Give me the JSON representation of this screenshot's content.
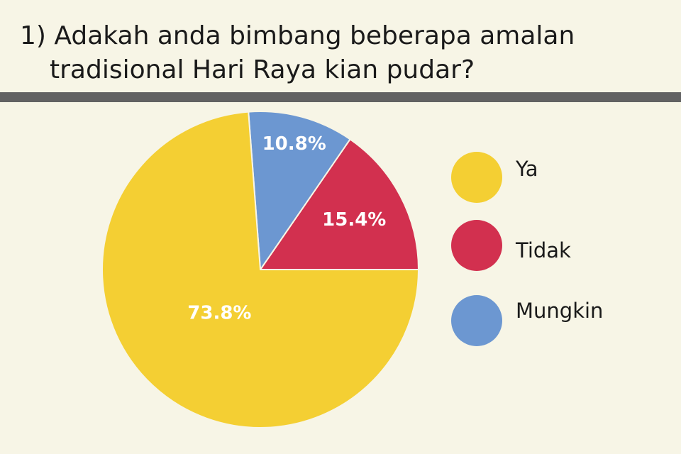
{
  "chart_data": {
    "type": "pie",
    "title": [
      "1) Adakah anda bimbang beberapa amalan",
      "tradisional Hari Raya kian pudar?"
    ],
    "categories": [
      "Ya",
      "Tidak",
      "Mungkin"
    ],
    "values": [
      73.8,
      15.4,
      10.8
    ],
    "value_labels": [
      "73.8%",
      "15.4%",
      "10.8%"
    ],
    "colors": [
      "#f4cf33",
      "#d2304f",
      "#6c97d1"
    ],
    "legend": "right"
  }
}
